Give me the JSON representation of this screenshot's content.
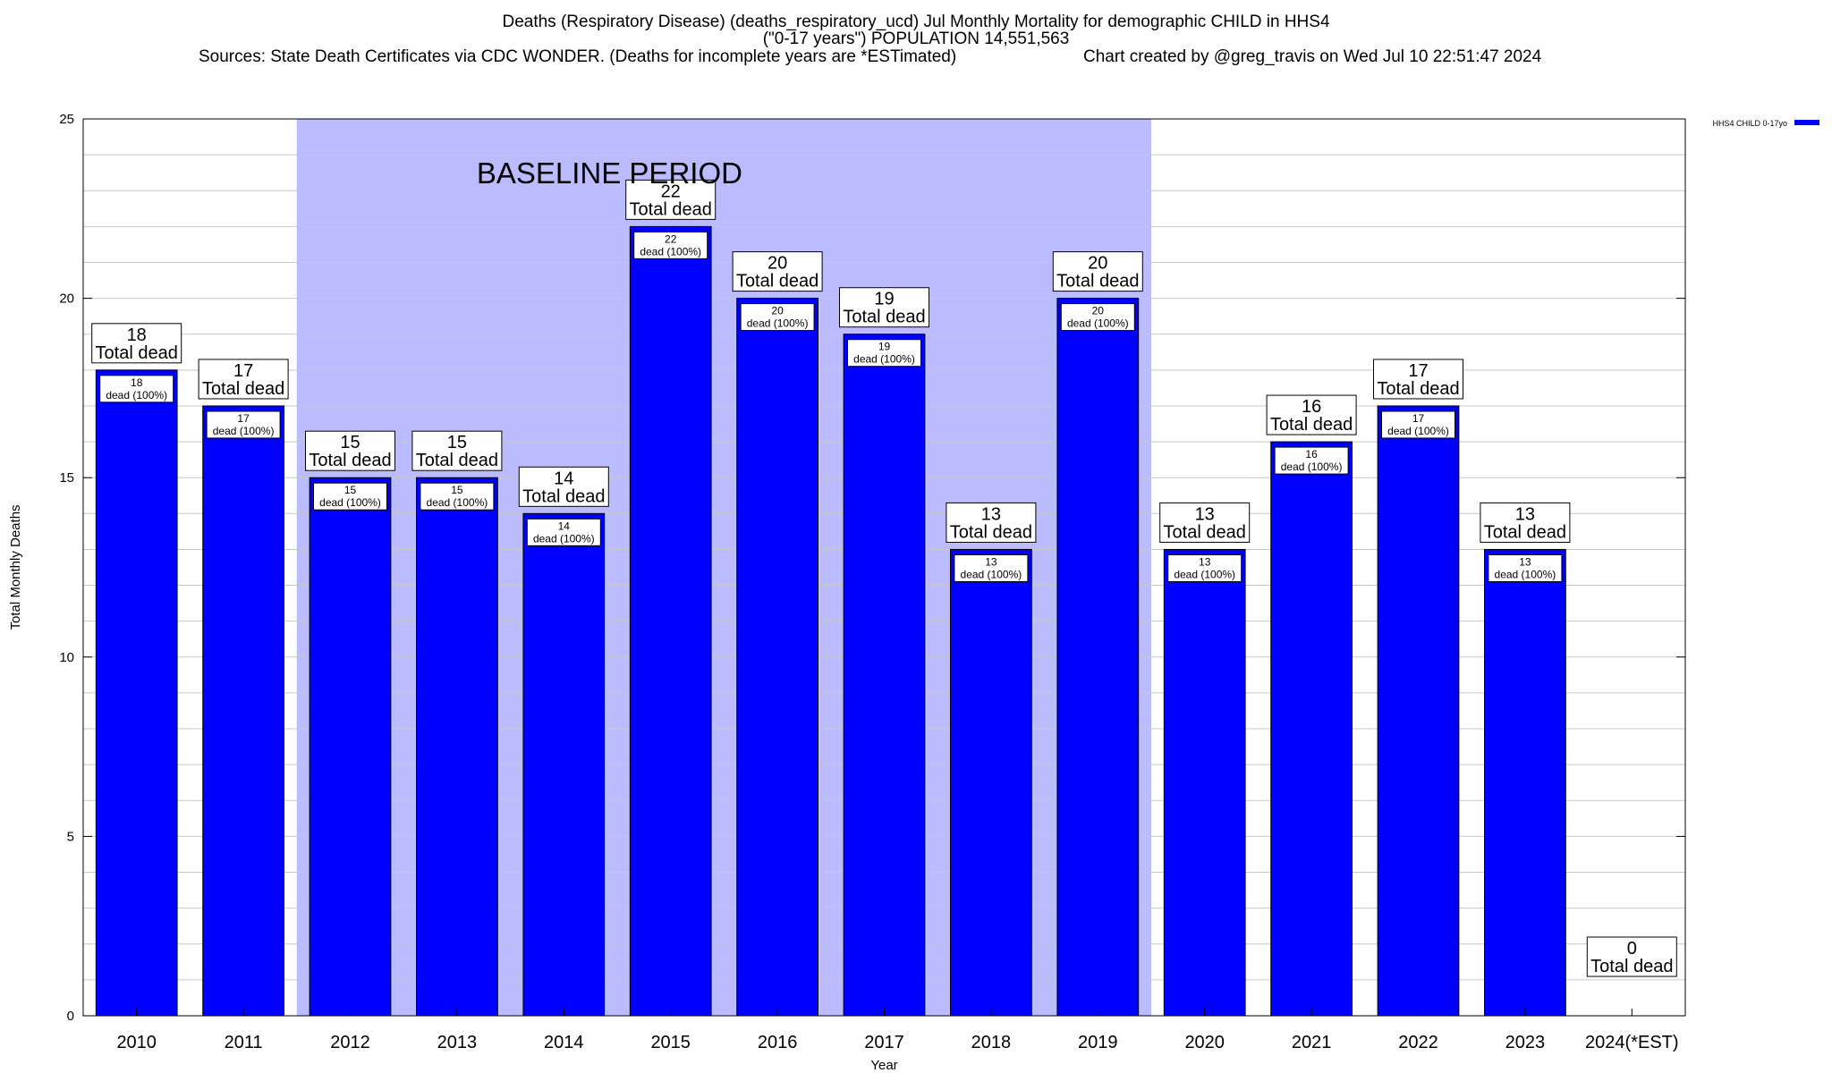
{
  "header": {
    "title_line1": "Deaths (Respiratory Disease) (deaths_respiratory_ucd) Jul Monthly Mortality for demographic CHILD in HHS4",
    "title_line2": "(\"0-17 years\") POPULATION 14,551,563",
    "sources": "Sources: State Death Certificates via CDC WONDER. (Deaths for incomplete years are *ESTimated)",
    "credit": "Chart created by @greg_travis on Wed Jul 10 22:51:47 2024"
  },
  "chart_data": {
    "type": "bar",
    "xlabel": "Year",
    "ylabel": "Total Monthly Deaths",
    "ylim": [
      0,
      25
    ],
    "yticks": [
      0,
      5,
      10,
      15,
      20,
      25
    ],
    "grid": true,
    "legend": {
      "position": "top-right",
      "label": "HHS4 CHILD 0-17yo"
    },
    "categories": [
      "2010",
      "2011",
      "2012",
      "2013",
      "2014",
      "2015",
      "2016",
      "2017",
      "2018",
      "2019",
      "2020",
      "2021",
      "2022",
      "2023",
      "2024(*EST)"
    ],
    "series": [
      {
        "name": "HHS4 CHILD 0-17yo",
        "color": "#0000ff",
        "values": [
          18,
          17,
          15,
          15,
          14,
          22,
          20,
          19,
          13,
          20,
          13,
          16,
          17,
          13,
          0
        ]
      }
    ],
    "top_label_suffix": "Total dead",
    "inner_label_suffix": "dead (100%)",
    "baseline": {
      "label": "BASELINE PERIOD",
      "from": "2012",
      "to": "2019",
      "color": "#bbbbff"
    }
  }
}
